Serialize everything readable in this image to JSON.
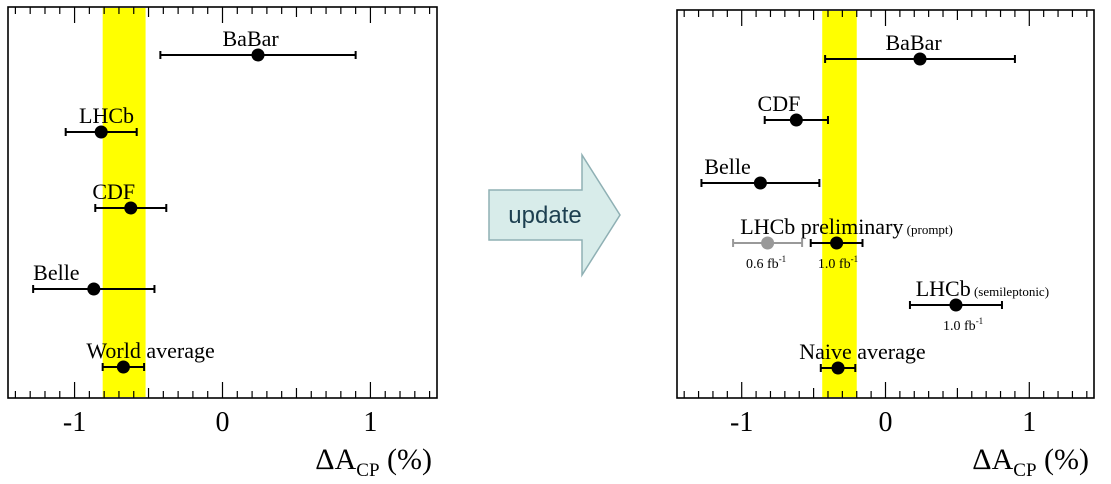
{
  "colors": {
    "band": "#ffff00",
    "point": "#000000",
    "faded_point": "#999999",
    "arrow_fill": "#d8ecea",
    "arrow_stroke": "#8fb0b4"
  },
  "arrow": {
    "label": "update"
  },
  "chart_data": [
    {
      "type": "scatter",
      "xlabel_main": "ΔA",
      "xlabel_sub": "CP",
      "xlabel_unit": "(%)",
      "xlim": [
        -1.45,
        1.45
      ],
      "xticks": [
        {
          "value": -1,
          "label": "-1"
        },
        {
          "value": 0,
          "label": "0"
        },
        {
          "value": 1,
          "label": "1"
        }
      ],
      "band": {
        "from": -0.81,
        "to": -0.52
      },
      "measurements": [
        {
          "name": "BaBar",
          "value": 0.24,
          "err_lo": 0.66,
          "err_hi": 0.66,
          "row": 1,
          "label_at": 0.0
        },
        {
          "name": "LHCb",
          "value": -0.82,
          "err_lo": 0.24,
          "err_hi": 0.24,
          "row": 2,
          "label_at": -0.97
        },
        {
          "name": "CDF",
          "value": -0.62,
          "err_lo": 0.24,
          "err_hi": 0.24,
          "row": 3,
          "label_at": -0.88
        },
        {
          "name": "Belle",
          "value": -0.87,
          "err_lo": 0.41,
          "err_hi": 0.41,
          "row": 4,
          "label_at": -1.28
        },
        {
          "name": "World average",
          "value": -0.67,
          "err_lo": 0.14,
          "err_hi": 0.14,
          "row": 5,
          "label_at": -0.92
        }
      ]
    },
    {
      "type": "scatter",
      "xlabel_main": "ΔA",
      "xlabel_sub": "CP",
      "xlabel_unit": "(%)",
      "xlim": [
        -1.45,
        1.45
      ],
      "xticks": [
        {
          "value": -1,
          "label": "-1"
        },
        {
          "value": 0,
          "label": "0"
        },
        {
          "value": 1,
          "label": "1"
        }
      ],
      "band": {
        "from": -0.44,
        "to": -0.2
      },
      "measurements": [
        {
          "name": "BaBar",
          "value": 0.24,
          "err_lo": 0.66,
          "err_hi": 0.66,
          "row": 1,
          "label_at": 0.0
        },
        {
          "name": "CDF",
          "value": -0.62,
          "err_lo": 0.22,
          "err_hi": 0.22,
          "row": 2,
          "label_at": -0.89
        },
        {
          "name": "Belle",
          "value": -0.87,
          "err_lo": 0.41,
          "err_hi": 0.41,
          "row": 3,
          "label_at": -1.26
        },
        {
          "name": "LHCb preliminary",
          "note": "(prompt)",
          "value": -0.34,
          "err_lo": 0.18,
          "err_hi": 0.18,
          "row": 4,
          "label_at": -1.01,
          "lumi": "1.0 fb",
          "lumi_exp": "-1",
          "lumi_at": -0.47
        },
        {
          "name": "LHCb preliminary (0.6 fb⁻¹)",
          "value": -0.82,
          "err_lo": 0.24,
          "err_hi": 0.24,
          "row": 4,
          "faded": true,
          "lumi": "0.6 fb",
          "lumi_exp": "-1",
          "lumi_at": -0.97
        },
        {
          "name": "LHCb",
          "note": "(semileptonic)",
          "value": 0.49,
          "err_lo": 0.32,
          "err_hi": 0.32,
          "row": 5,
          "label_at": 0.21,
          "lumi": "1.0 fb",
          "lumi_exp": "-1",
          "lumi_at": 0.4
        },
        {
          "name": "Naive average",
          "value": -0.33,
          "err_lo": 0.12,
          "err_hi": 0.12,
          "row": 6,
          "label_at": -0.6
        }
      ]
    }
  ]
}
